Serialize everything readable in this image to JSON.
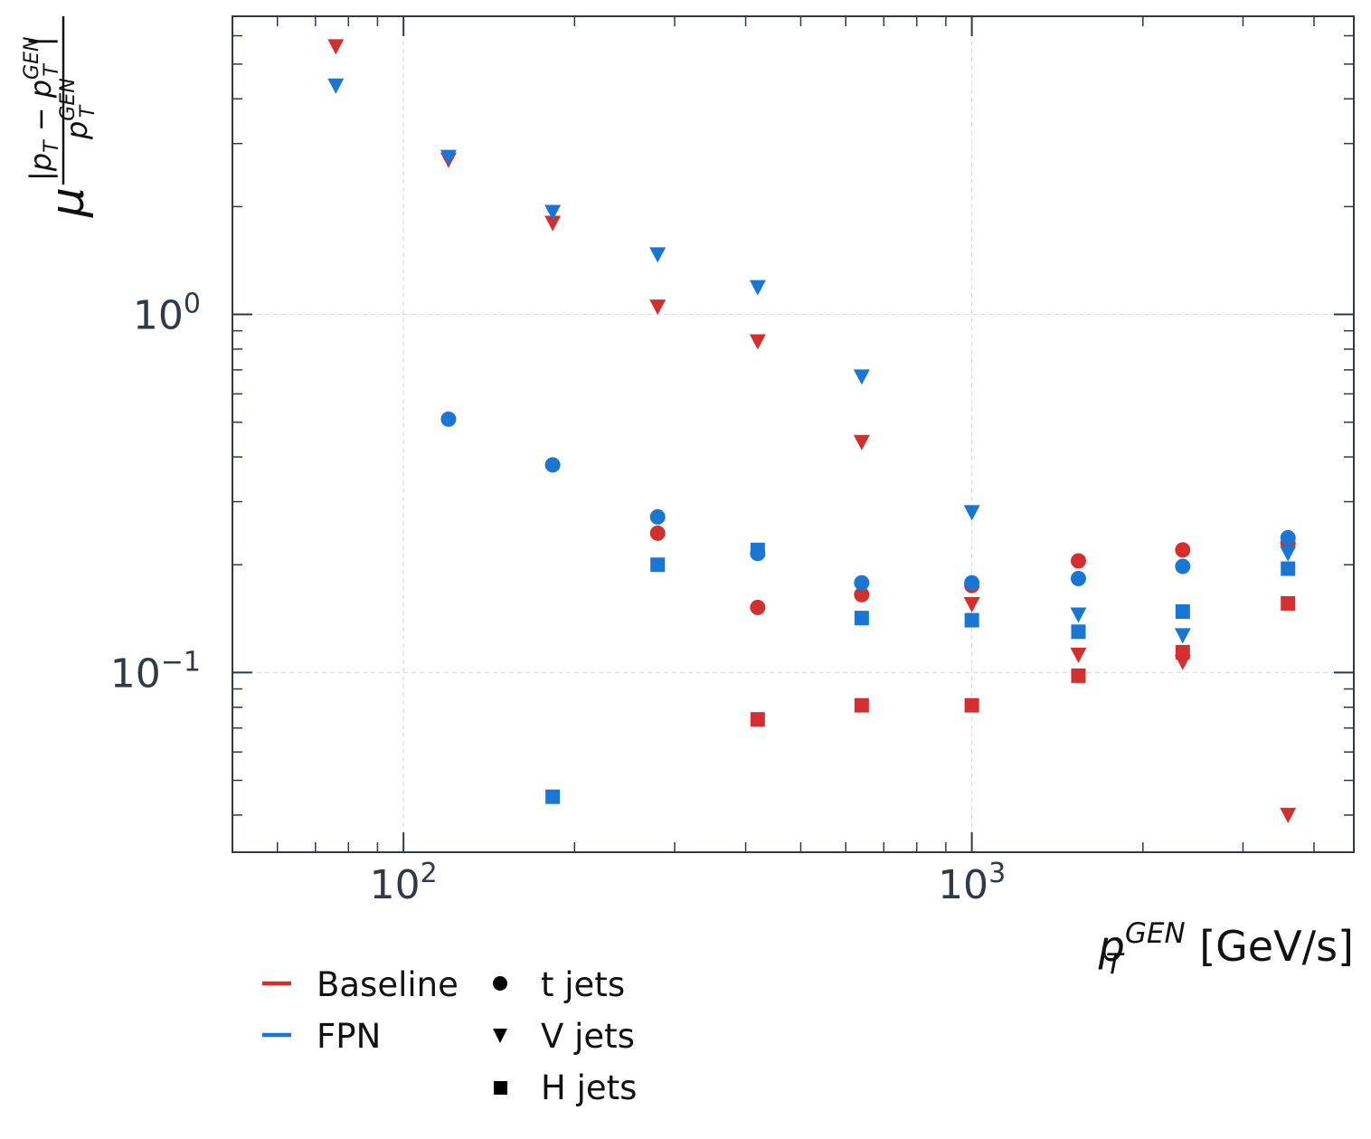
{
  "chart_data": {
    "type": "scatter",
    "x_scale": "log",
    "y_scale": "log",
    "xlim": [
      50,
      4700
    ],
    "ylim": [
      0.0315,
      6.8
    ],
    "xticks": [
      {
        "value": 100,
        "base": "10",
        "exp": "2"
      },
      {
        "value": 1000,
        "base": "10",
        "exp": "3"
      }
    ],
    "yticks": [
      {
        "value": 1,
        "base": "10",
        "exp": "0"
      },
      {
        "value": 0.1,
        "base": "10",
        "exp": "−1"
      }
    ],
    "xlabel": {
      "var": "p",
      "sup": "GEN",
      "sub": "T",
      "unit": "[GeV/s]"
    },
    "ylabel": {
      "mu": "μ",
      "num": "|p",
      "num_sub": "T",
      "minus": " − p",
      "sup": "GEN",
      "sub": "T",
      "den": "p"
    },
    "grid": true,
    "colors": {
      "Baseline": "#d32f2f",
      "FPN": "#1976d2",
      "axis": "#2e3a45"
    },
    "legend_models": [
      {
        "name": "Baseline",
        "color": "#d32f2f"
      },
      {
        "name": "FPN",
        "color": "#1976d2"
      }
    ],
    "legend_markers": [
      {
        "name": "t jets",
        "marker": "circle"
      },
      {
        "name": "V jets",
        "marker": "triangle"
      },
      {
        "name": "H jets",
        "marker": "square"
      }
    ],
    "series": [
      {
        "model": "Baseline",
        "jet": "t jets",
        "marker": "circle",
        "color": "#d32f2f",
        "x": [
          280,
          420,
          640,
          1000,
          1540,
          2350,
          3600
        ],
        "y": [
          0.245,
          0.152,
          0.165,
          0.175,
          0.205,
          0.22,
          0.23
        ]
      },
      {
        "model": "FPN",
        "jet": "t jets",
        "marker": "circle",
        "color": "#1976d2",
        "x": [
          120,
          183,
          280,
          420,
          640,
          1000,
          1540,
          2350,
          3600
        ],
        "y": [
          0.51,
          0.38,
          0.272,
          0.215,
          0.178,
          0.178,
          0.183,
          0.198,
          0.238
        ]
      },
      {
        "model": "Baseline",
        "jet": "V jets",
        "marker": "triangle",
        "color": "#d32f2f",
        "x": [
          76,
          120,
          183,
          280,
          420,
          640,
          1000,
          1540,
          2350,
          3600
        ],
        "y": [
          5.6,
          2.7,
          1.8,
          1.05,
          0.84,
          0.44,
          0.155,
          0.112,
          0.107,
          0.04
        ]
      },
      {
        "model": "FPN",
        "jet": "V jets",
        "marker": "triangle",
        "color": "#1976d2",
        "x": [
          76,
          120,
          183,
          280,
          420,
          640,
          1000,
          1540,
          2350,
          3600
        ],
        "y": [
          4.35,
          2.75,
          1.93,
          1.47,
          1.19,
          0.67,
          0.28,
          0.145,
          0.127,
          0.215
        ]
      },
      {
        "model": "Baseline",
        "jet": "H jets",
        "marker": "square",
        "color": "#d32f2f",
        "x": [
          420,
          640,
          1000,
          1540,
          2350,
          3600
        ],
        "y": [
          0.074,
          0.081,
          0.081,
          0.098,
          0.114,
          0.156
        ]
      },
      {
        "model": "FPN",
        "jet": "H jets",
        "marker": "square",
        "color": "#1976d2",
        "x": [
          183,
          280,
          420,
          640,
          1000,
          1540,
          2350,
          3600
        ],
        "y": [
          0.045,
          0.2,
          0.22,
          0.142,
          0.14,
          0.13,
          0.148,
          0.195
        ]
      }
    ]
  }
}
